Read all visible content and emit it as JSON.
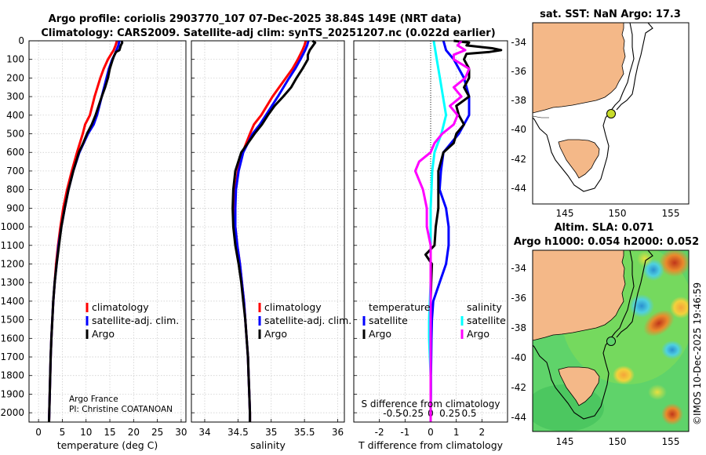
{
  "title": {
    "line1": "Argo profile: coriolis 2903770_107 07-Dec-2025 38.84S 149E (NRT data)",
    "line2": "Climatology: CARS2009. Satellite-adj clim: synTS_20251207.nc (0.022d earlier)"
  },
  "colors": {
    "climatology": "#ff0000",
    "satellite": "#0000ff",
    "argo": "#000000",
    "sat_sdiff": "#00ffff",
    "argo_sdiff": "#ff00ff"
  },
  "chart_data": [
    {
      "type": "line",
      "id": "temperature",
      "xlabel": "temperature (deg C)",
      "ylabel": "",
      "xlim": [
        -2,
        31
      ],
      "ylim": [
        2050,
        0
      ],
      "xticks": [
        0,
        5,
        10,
        15,
        20,
        25,
        30
      ],
      "yticks": [
        0,
        100,
        200,
        300,
        400,
        500,
        600,
        700,
        800,
        900,
        1000,
        1100,
        1200,
        1300,
        1400,
        1500,
        1600,
        1700,
        1800,
        1900,
        2000
      ],
      "legend": [
        "climatology",
        "satellite-adj. clim.",
        "Argo"
      ],
      "annotations": [
        "Argo France",
        "PI: Christine COATANOAN"
      ],
      "series": [
        {
          "name": "climatology",
          "color": "#ff0000",
          "depth": [
            0,
            25,
            50,
            75,
            100,
            150,
            200,
            300,
            400,
            450,
            500,
            600,
            700,
            800,
            900,
            1000,
            1100,
            1200,
            1300,
            1400,
            1500,
            1600,
            1700,
            1800,
            1900,
            2000,
            2050
          ],
          "values": [
            16.5,
            16.2,
            15.8,
            15.2,
            14.6,
            13.7,
            13.0,
            11.8,
            10.8,
            9.8,
            9.3,
            8.1,
            7.0,
            6.0,
            5.2,
            4.6,
            4.1,
            3.7,
            3.4,
            3.1,
            2.9,
            2.7,
            2.55,
            2.45,
            2.35,
            2.25,
            2.2
          ]
        },
        {
          "name": "satellite-adj. clim.",
          "color": "#0000ff",
          "depth": [
            0,
            25,
            50,
            75,
            100,
            150,
            200,
            300,
            400,
            450,
            500,
            600,
            700,
            800,
            900,
            1000,
            1100,
            1200,
            1300,
            1400,
            1500,
            1600,
            1700,
            1800,
            1900,
            2000,
            2050
          ],
          "values": [
            17.0,
            16.8,
            16.4,
            16.0,
            15.5,
            14.8,
            14.3,
            13.3,
            12.3,
            11.6,
            10.4,
            8.6,
            7.3,
            6.3,
            5.5,
            4.8,
            4.2,
            3.8,
            3.4,
            3.1,
            2.9,
            2.7,
            2.55,
            2.45,
            2.35,
            2.25,
            2.2
          ]
        },
        {
          "name": "Argo",
          "color": "#000000",
          "depth": [
            0,
            10,
            25,
            50,
            60,
            80,
            100,
            150,
            200,
            250,
            300,
            400,
            450,
            500,
            550,
            600,
            700,
            800,
            900,
            1000,
            1100,
            1200,
            1300,
            1400,
            1500,
            1600,
            1700,
            1800,
            1900,
            2000,
            2050
          ],
          "values": [
            17.5,
            17.6,
            17.3,
            17.0,
            16.3,
            15.9,
            15.6,
            15.0,
            14.6,
            14.0,
            13.3,
            12.0,
            11.2,
            10.2,
            9.4,
            8.5,
            7.3,
            6.3,
            5.5,
            4.8,
            4.3,
            3.8,
            3.4,
            3.1,
            2.9,
            2.7,
            2.55,
            2.45,
            2.35,
            2.25,
            2.2
          ]
        }
      ]
    },
    {
      "type": "line",
      "id": "salinity",
      "xlabel": "salinity",
      "xlim": [
        33.8,
        36.1
      ],
      "ylim": [
        2050,
        0
      ],
      "xticks": [
        34,
        34.5,
        35,
        35.5,
        36
      ],
      "xticklabels": [
        "34",
        "34.5",
        "35",
        "35.5",
        "36"
      ],
      "legend": [
        "climatology",
        "satellite-adj. clim.",
        "Argo"
      ],
      "series": [
        {
          "name": "climatology",
          "color": "#ff0000",
          "depth": [
            0,
            25,
            50,
            100,
            150,
            200,
            300,
            400,
            450,
            500,
            600,
            700,
            800,
            900,
            1000,
            1100,
            1200,
            1300,
            1400,
            1500,
            1600,
            1700,
            1800,
            1900,
            2000,
            2050
          ],
          "values": [
            35.52,
            35.5,
            35.47,
            35.4,
            35.32,
            35.22,
            35.02,
            34.85,
            34.74,
            34.68,
            34.57,
            34.5,
            34.46,
            34.45,
            34.46,
            34.49,
            34.53,
            34.56,
            34.59,
            34.61,
            34.63,
            34.65,
            34.66,
            34.67,
            34.68,
            34.68
          ]
        },
        {
          "name": "satellite-adj. clim.",
          "color": "#0000ff",
          "depth": [
            0,
            25,
            50,
            100,
            150,
            200,
            300,
            400,
            450,
            500,
            600,
            700,
            800,
            900,
            1000,
            1100,
            1200,
            1300,
            1400,
            1500,
            1600,
            1700,
            1800,
            1900,
            2000,
            2050
          ],
          "values": [
            35.56,
            35.54,
            35.51,
            35.44,
            35.36,
            35.27,
            35.1,
            34.92,
            34.83,
            34.72,
            34.58,
            34.51,
            34.47,
            34.46,
            34.46,
            34.49,
            34.53,
            34.56,
            34.59,
            34.61,
            34.63,
            34.65,
            34.66,
            34.67,
            34.68,
            34.68
          ]
        },
        {
          "name": "Argo",
          "color": "#000000",
          "depth": [
            0,
            10,
            25,
            50,
            75,
            100,
            150,
            200,
            250,
            300,
            350,
            400,
            450,
            500,
            550,
            600,
            700,
            800,
            900,
            1000,
            1100,
            1200,
            1300,
            1400,
            1500,
            1600,
            1700,
            1800,
            1900,
            2000,
            2050
          ],
          "values": [
            35.62,
            35.66,
            35.63,
            35.58,
            35.55,
            35.55,
            35.47,
            35.38,
            35.3,
            35.18,
            35.05,
            34.95,
            34.86,
            34.75,
            34.65,
            34.55,
            34.46,
            34.43,
            34.42,
            34.43,
            34.46,
            34.51,
            34.55,
            34.58,
            34.61,
            34.63,
            34.65,
            34.66,
            34.67,
            34.68,
            34.68
          ]
        }
      ]
    },
    {
      "type": "line",
      "id": "differences",
      "xlabel": "T difference from climatology",
      "xlabel_top": "S difference from climatology",
      "xlim": [
        -3,
        3
      ],
      "ylim": [
        2050,
        0
      ],
      "xticks": [
        -2,
        -1,
        0,
        1,
        2
      ],
      "sticks_text": [
        "-0.5",
        "-0.25",
        "0",
        "0.25",
        "0.5"
      ],
      "legend_temperature_title": "temperature",
      "legend_salinity_title": "salinity",
      "legend_temperature": [
        "satellite",
        "Argo"
      ],
      "legend_salinity": [
        "satellite",
        "Argo"
      ],
      "series": [
        {
          "name": "T satellite",
          "color": "#0000ff",
          "depth": [
            0,
            50,
            100,
            200,
            300,
            400,
            500,
            600,
            700,
            800,
            900,
            1000,
            1100,
            1200,
            1300,
            1400,
            1500,
            1600,
            1700,
            1800,
            1900,
            2000,
            2050
          ],
          "values": [
            0.5,
            0.6,
            0.9,
            1.3,
            1.5,
            1.5,
            1.1,
            0.5,
            0.4,
            0.35,
            0.6,
            0.7,
            0.7,
            0.6,
            0.35,
            0.1,
            0.05,
            0.03,
            0.02,
            0.01,
            0.01,
            0.0,
            0.0
          ]
        },
        {
          "name": "T Argo",
          "color": "#000000",
          "depth": [
            0,
            10,
            25,
            40,
            50,
            60,
            70,
            100,
            150,
            200,
            250,
            300,
            350,
            400,
            450,
            500,
            550,
            600,
            700,
            800,
            900,
            1000,
            1100,
            1150,
            1200,
            1300,
            1400,
            1500,
            1600,
            1700,
            1800,
            1900,
            2000,
            2050
          ],
          "values": [
            0.9,
            1.5,
            1.4,
            2.4,
            2.75,
            2.3,
            1.4,
            1.3,
            1.5,
            1.5,
            1.3,
            1.5,
            1.0,
            1.1,
            1.3,
            1.0,
            0.9,
            0.5,
            0.3,
            0.3,
            0.3,
            0.2,
            0.15,
            -0.2,
            0.05,
            0.02,
            0.0,
            0.0,
            0.0,
            0.0,
            0.0,
            0.0,
            0.0,
            0.0
          ]
        },
        {
          "name": "S satellite",
          "color": "#00ffff",
          "depth": [
            0,
            100,
            200,
            300,
            400,
            500,
            600,
            700,
            800,
            900,
            1000,
            1100,
            1200,
            1300,
            1400,
            1500,
            1600,
            1700,
            1800,
            1900,
            2000,
            2050
          ],
          "values": [
            0.04,
            0.08,
            0.12,
            0.16,
            0.2,
            0.14,
            0.05,
            0.02,
            0.01,
            0.0,
            0.0,
            0.0,
            0.0,
            0.0,
            -0.01,
            -0.02,
            -0.02,
            -0.01,
            0.0,
            0.0,
            0.0,
            0.0
          ]
        },
        {
          "name": "S Argo",
          "color": "#ff00ff",
          "depth": [
            0,
            25,
            50,
            75,
            100,
            150,
            200,
            250,
            300,
            350,
            400,
            450,
            500,
            550,
            600,
            650,
            700,
            800,
            900,
            1000,
            1100,
            1200,
            1300,
            1400,
            1500,
            1600,
            1700,
            1800,
            1900,
            2000,
            2050
          ],
          "values": [
            0.4,
            0.35,
            0.45,
            0.3,
            0.3,
            0.5,
            0.45,
            0.3,
            0.4,
            0.25,
            0.35,
            0.3,
            0.15,
            0.05,
            0.0,
            -0.15,
            -0.2,
            -0.1,
            -0.05,
            -0.05,
            0.0,
            0.0,
            0.0,
            0.0,
            0.0,
            0.0,
            0.0,
            0.0,
            0.0,
            0.0,
            0.0
          ]
        }
      ]
    }
  ],
  "maps": {
    "sst": {
      "title": "sat. SST: NaN Argo: 17.3",
      "xticks": [
        "145",
        "150",
        "155"
      ],
      "yticks": [
        "-34",
        "-36",
        "-38",
        "-40",
        "-42",
        "-44"
      ],
      "xlim": [
        142.5,
        155.5
      ],
      "ylim": [
        -45,
        -32.5
      ],
      "float_lon": 149.0,
      "float_lat": -38.84
    },
    "sla": {
      "title1": "Altim. SLA: 0.071",
      "title2": "Argo h1000: 0.054 h2000: 0.052",
      "xticks": [
        "145",
        "150",
        "155"
      ],
      "yticks": [
        "-34",
        "-36",
        "-38",
        "-40",
        "-42",
        "-44"
      ],
      "xlim": [
        142.5,
        155.5
      ],
      "ylim": [
        -45,
        -32.5
      ],
      "float_lon": 149.0,
      "float_lat": -38.84
    }
  },
  "copyright": "©IMOS 10-Dec-2025 19:46:59"
}
